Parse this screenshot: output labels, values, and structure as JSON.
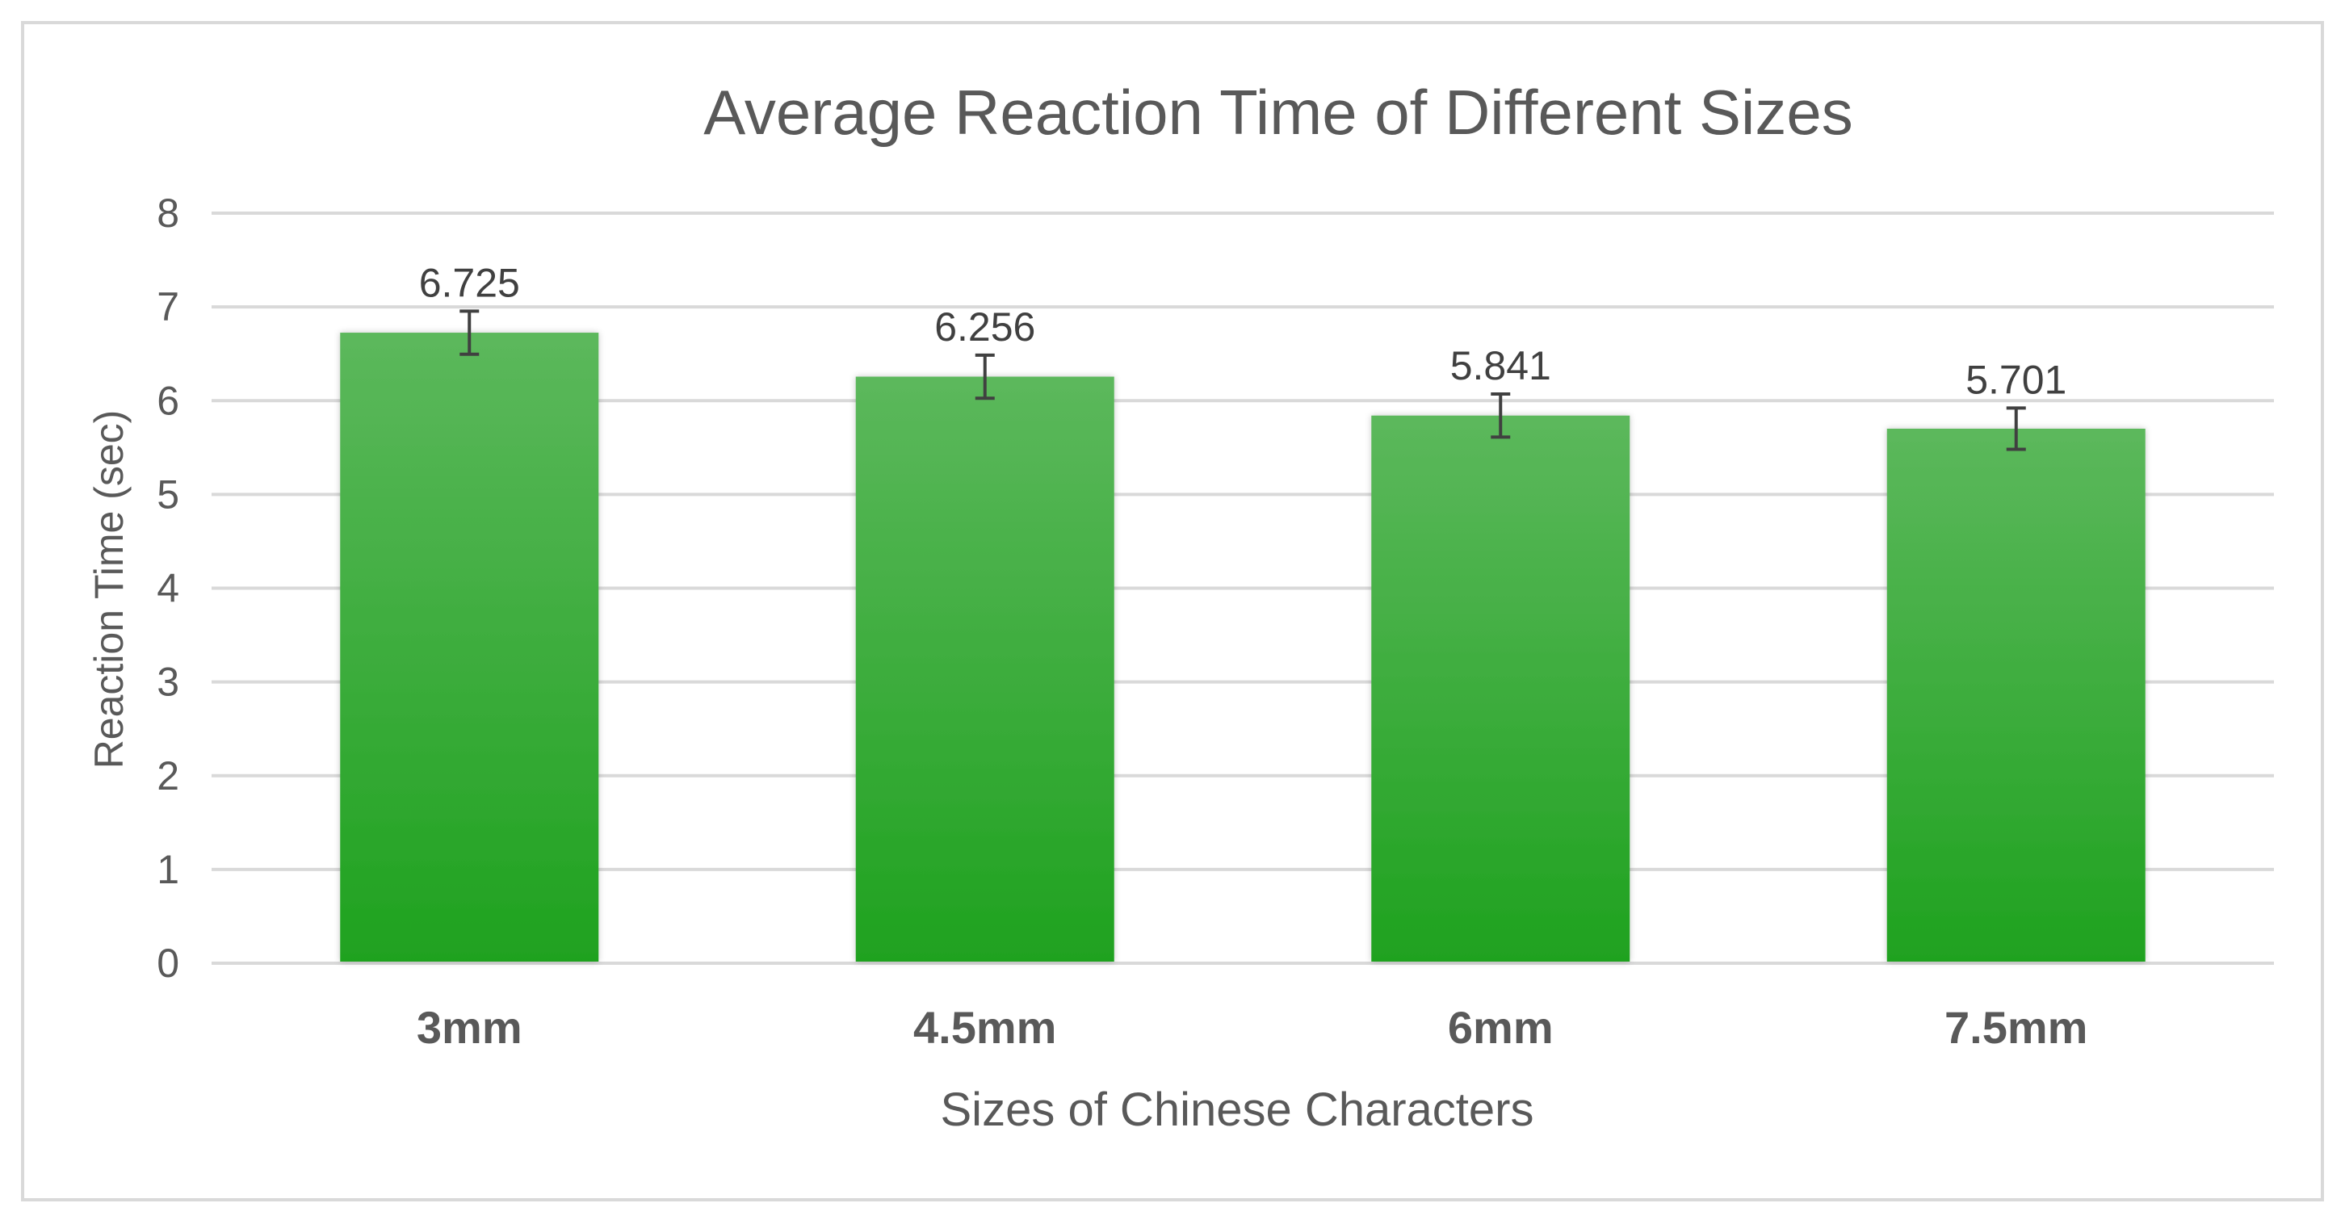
{
  "chart_data": {
    "type": "bar",
    "title": "Average Reaction Time of Different Sizes",
    "xlabel": "Sizes of Chinese Characters",
    "ylabel": "Reaction Time (sec)",
    "categories": [
      "3mm",
      "4.5mm",
      "6mm",
      "7.5mm"
    ],
    "values": [
      6.725,
      6.256,
      5.841,
      5.701
    ],
    "value_labels": [
      "6.725",
      "6.256",
      "5.841",
      "5.701"
    ],
    "error_bars": [
      0.23,
      0.23,
      0.23,
      0.22
    ],
    "ylim": [
      0,
      8
    ],
    "yticks": [
      "0",
      "1",
      "2",
      "3",
      "4",
      "5",
      "6",
      "7",
      "8"
    ],
    "grid": true,
    "legend": "none",
    "colors": {
      "bar_top": "#5cb85c",
      "bar_bottom": "#1fa21f",
      "error_bar": "#404040",
      "grid": "#d9d9d9",
      "text": "#595959",
      "title": "#595959"
    }
  }
}
